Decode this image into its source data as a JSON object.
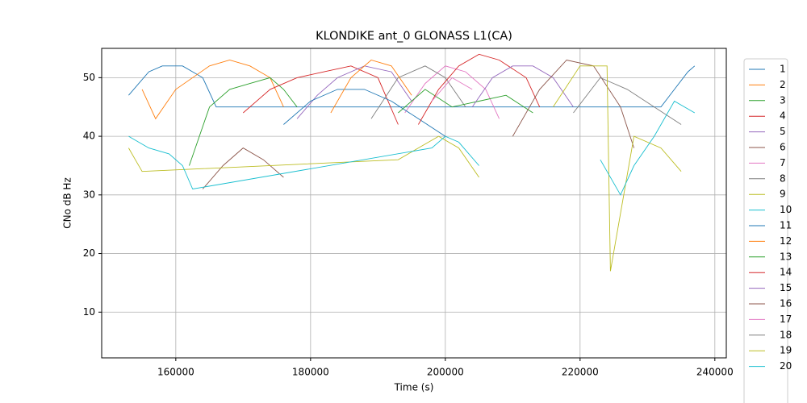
{
  "chart_data": {
    "type": "line",
    "title": "KLONDIKE ant_0 GLONASS L1(CA)",
    "x_label": "Time (s)",
    "y_label": "CNo dB Hz",
    "xlim": [
      149000,
      241700
    ],
    "ylim": [
      2.2,
      55
    ],
    "xticks": [
      160000,
      180000,
      200000,
      220000,
      240000
    ],
    "yticks": [
      10,
      20,
      30,
      40,
      50
    ],
    "grid": true,
    "legend": "outside right",
    "series": [
      {
        "name": "1",
        "color": "#1f77b4",
        "x": [
          153000,
          156000,
          158000,
          161000,
          164000,
          166000,
          232000,
          234000,
          236000,
          237000
        ],
        "values": [
          47,
          51,
          52,
          52,
          50,
          45,
          45,
          48,
          51,
          52
        ]
      },
      {
        "name": "2",
        "color": "#ff7f0e",
        "x": [
          155000,
          157000,
          160000,
          165000,
          168000,
          171000,
          174000,
          176000
        ],
        "values": [
          48,
          43,
          48,
          52,
          53,
          52,
          50,
          45
        ]
      },
      {
        "name": "3",
        "color": "#2ca02c",
        "x": [
          162000,
          165000,
          168000,
          171000,
          174000,
          176000,
          178000
        ],
        "values": [
          35,
          45,
          48,
          49,
          50,
          48,
          45
        ]
      },
      {
        "name": "4",
        "color": "#d62728",
        "x": [
          170000,
          174000,
          178000,
          182000,
          186000,
          190000,
          193000
        ],
        "values": [
          44,
          48,
          50,
          51,
          52,
          50,
          42
        ]
      },
      {
        "name": "5",
        "color": "#9467bd",
        "x": [
          178000,
          181000,
          184000,
          188000,
          192000,
          195000
        ],
        "values": [
          43,
          47,
          50,
          52,
          51,
          46
        ]
      },
      {
        "name": "6",
        "color": "#8c564b",
        "x": [
          164000,
          167000,
          170000,
          173000,
          176000
        ],
        "values": [
          31,
          35,
          38,
          36,
          33
        ]
      },
      {
        "name": "7",
        "color": "#e377c2",
        "x": [
          194000,
          197000,
          200000,
          203000,
          206000,
          208000
        ],
        "values": [
          44,
          49,
          52,
          51,
          48,
          43
        ]
      },
      {
        "name": "8",
        "color": "#7f7f7f",
        "x": [
          189000,
          193000,
          197000,
          200000,
          203000
        ],
        "values": [
          43,
          50,
          52,
          50,
          45
        ]
      },
      {
        "name": "9",
        "color": "#bcbd22",
        "x": [
          153000,
          154000,
          155000,
          193000,
          196000,
          199000,
          202000,
          205000
        ],
        "values": [
          38,
          36,
          34,
          36,
          38,
          40,
          38,
          33
        ]
      },
      {
        "name": "10",
        "color": "#17becf",
        "x": [
          153000,
          156000,
          159000,
          161000,
          162500,
          198000,
          200000,
          202000,
          205000
        ],
        "values": [
          40,
          38,
          37,
          35,
          31,
          38,
          40,
          39,
          35
        ]
      },
      {
        "name": "11",
        "color": "#1f77b4",
        "x": [
          176000,
          180000,
          184000,
          188000,
          192000,
          196000,
          200000
        ],
        "values": [
          42,
          46,
          48,
          48,
          46,
          43,
          40
        ]
      },
      {
        "name": "12",
        "color": "#ff7f0e",
        "x": [
          183000,
          186000,
          189000,
          192000,
          195000
        ],
        "values": [
          44,
          50,
          53,
          52,
          47
        ]
      },
      {
        "name": "13",
        "color": "#2ca02c",
        "x": [
          193000,
          197000,
          201000,
          205000,
          209000,
          213000
        ],
        "values": [
          44,
          48,
          45,
          46,
          47,
          44
        ]
      },
      {
        "name": "14",
        "color": "#d62728",
        "x": [
          196000,
          199000,
          202000,
          205000,
          208000,
          212000,
          214000
        ],
        "values": [
          42,
          48,
          52,
          54,
          53,
          50,
          45
        ]
      },
      {
        "name": "15",
        "color": "#9467bd",
        "x": [
          204000,
          207000,
          210000,
          213000,
          216000,
          219000
        ],
        "values": [
          45,
          50,
          52,
          52,
          50,
          45
        ]
      },
      {
        "name": "16",
        "color": "#8c564b",
        "x": [
          210000,
          214000,
          218000,
          222000,
          226000,
          228000
        ],
        "values": [
          40,
          48,
          53,
          52,
          45,
          38
        ]
      },
      {
        "name": "17",
        "color": "#e377c2",
        "x": [
          198000,
          201000,
          204000
        ],
        "values": [
          46,
          50,
          48
        ]
      },
      {
        "name": "18",
        "color": "#7f7f7f",
        "x": [
          219000,
          223000,
          227000,
          231000,
          235000
        ],
        "values": [
          44,
          50,
          48,
          45,
          42
        ]
      },
      {
        "name": "19",
        "color": "#bcbd22",
        "x": [
          216000,
          220000,
          224000,
          224500,
          228000,
          232000,
          235000
        ],
        "values": [
          45,
          52,
          52,
          17,
          40,
          38,
          34
        ]
      },
      {
        "name": "20",
        "color": "#17becf",
        "x": [
          223000,
          226000,
          228000,
          231000,
          234000,
          237000
        ],
        "values": [
          36,
          30,
          35,
          40,
          46,
          44
        ]
      }
    ]
  }
}
